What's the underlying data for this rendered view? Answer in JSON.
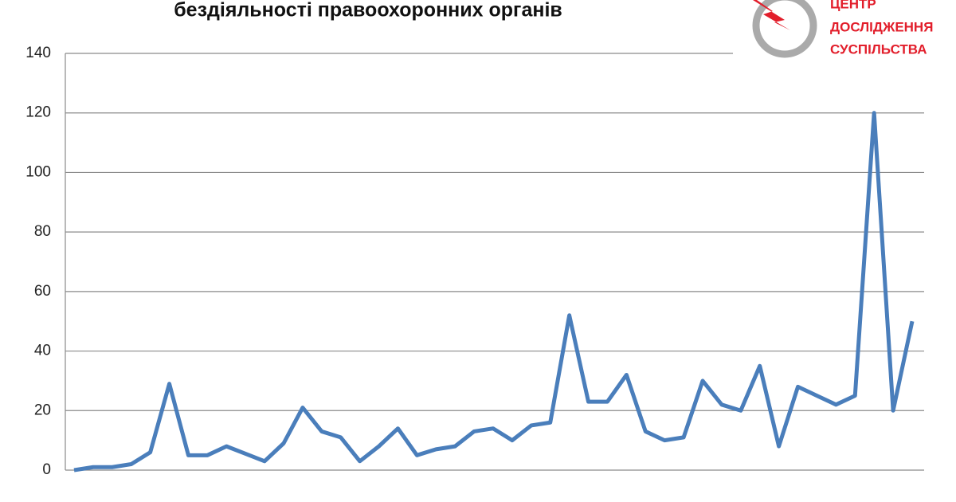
{
  "chart_data": {
    "type": "line",
    "title": "бездіяльності правоохоронних органів",
    "annotations": [
      "ЦЕНТР",
      "ДОСЛІДЖЕННЯ",
      "СУСПІЛЬСТВА"
    ],
    "categories": [
      null,
      null,
      null,
      null,
      null,
      null,
      null,
      null,
      null,
      null,
      null,
      null,
      null,
      null,
      null,
      null,
      null,
      null,
      null,
      null,
      null,
      null,
      null,
      null,
      null,
      null,
      null,
      null,
      null,
      null,
      null,
      null,
      null,
      null,
      null,
      null,
      null,
      null,
      null,
      null,
      null,
      null,
      null,
      null,
      null
    ],
    "series": [
      {
        "color": "#4a7ebb",
        "values": [
          0,
          1,
          1,
          2,
          6,
          29,
          5,
          5,
          8,
          5.5,
          3,
          9,
          21,
          13,
          11,
          3,
          8,
          14,
          5,
          7,
          8,
          13,
          14,
          10,
          15,
          16,
          52,
          23,
          23,
          32,
          13,
          10,
          11,
          30,
          22,
          20,
          35,
          8,
          28,
          25,
          22,
          25,
          120,
          20,
          50
        ]
      }
    ],
    "ylim": [
      0,
      140
    ],
    "yticks": [
      0,
      20,
      40,
      60,
      80,
      100,
      120,
      140
    ],
    "grid": true
  }
}
